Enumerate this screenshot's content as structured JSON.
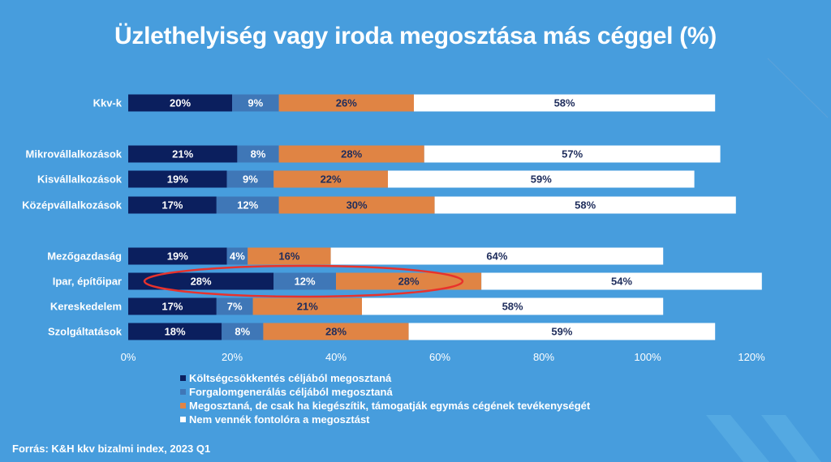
{
  "chart_data": {
    "type": "bar",
    "orientation": "horizontal",
    "stacked": true,
    "title": "Üzlethelyiség vagy iroda megosztása más céggel (%)",
    "xlabel": "",
    "ylabel": "",
    "xlim": [
      0,
      120
    ],
    "x_ticks": [
      "0%",
      "20%",
      "40%",
      "60%",
      "80%",
      "100%",
      "120%"
    ],
    "grid": false,
    "legend_position": "bottom",
    "categories": [
      "Kkv-k",
      "Mikrovállalkozások",
      "Kisvállalkozások",
      "Középvállalkozások",
      "Mezőgazdaság",
      "Ipar, építőipar",
      "Kereskedelem",
      "Szolgáltatások"
    ],
    "category_groups": [
      [
        0
      ],
      [
        1,
        2,
        3
      ],
      [
        4,
        5,
        6,
        7
      ]
    ],
    "series": [
      {
        "name": "Költségcsökkentés céljából megosztaná",
        "color": "#0b1f5e",
        "label_color": "#ffffff",
        "values": [
          20,
          21,
          19,
          17,
          19,
          28,
          17,
          18
        ]
      },
      {
        "name": "Forgalomgenerálás céljából megosztaná",
        "color": "#3f77b7",
        "label_color": "#ffffff",
        "values": [
          9,
          8,
          9,
          12,
          4,
          12,
          7,
          8
        ]
      },
      {
        "name": "Megosztaná, de csak ha kiegészítik, támogatják egymás cégének tevékenységét",
        "color": "#e08444",
        "label_color": "#1f2d5c",
        "values": [
          26,
          28,
          22,
          30,
          16,
          28,
          21,
          28
        ]
      },
      {
        "name": "Nem vennék fontolóra a megosztást",
        "color": "#ffffff",
        "label_color": "#1f2d5c",
        "values": [
          58,
          57,
          59,
          58,
          64,
          54,
          58,
          59
        ]
      }
    ],
    "annotations": [
      {
        "type": "ellipse-highlight",
        "color": "#e8322c",
        "target_category": "Ipar, építőipar",
        "target_series": [
          0,
          1,
          2
        ]
      }
    ]
  },
  "source": "Forrás: K&H kkv bizalmi index, 2023 Q1"
}
